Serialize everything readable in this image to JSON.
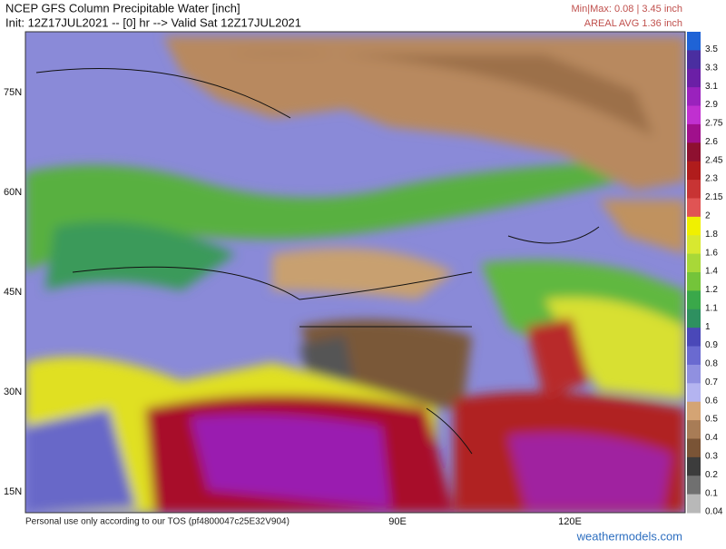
{
  "header": {
    "title": "NCEP GFS Column Precipitable Water [inch]",
    "init": "Init: 12Z17JUL2021 -- [0] hr --> Valid Sat 12Z17JUL2021",
    "minmax": "Min|Max: 0.08 | 3.45 inch",
    "areal_avg": "AREAL AVG 1.36 inch"
  },
  "map": {
    "lat_labels": [
      "75N",
      "60N",
      "45N",
      "30N",
      "15N"
    ],
    "lon_labels": [
      "90E",
      "120E"
    ]
  },
  "colorbar": {
    "levels": [
      {
        "label": "3.5",
        "color": "#1f63d6"
      },
      {
        "label": "3.3",
        "color": "#4a2ea0"
      },
      {
        "label": "3.1",
        "color": "#6b1fa6"
      },
      {
        "label": "2.9",
        "color": "#9a22bd"
      },
      {
        "label": "2.75",
        "color": "#c030d0"
      },
      {
        "label": "2.6",
        "color": "#a0108c"
      },
      {
        "label": "2.45",
        "color": "#8e1030"
      },
      {
        "label": "2.3",
        "color": "#b01c1c"
      },
      {
        "label": "2.15",
        "color": "#c83434"
      },
      {
        "label": "2",
        "color": "#e05454"
      },
      {
        "label": "1.8",
        "color": "#f0f000"
      },
      {
        "label": "1.6",
        "color": "#d8e830"
      },
      {
        "label": "1.4",
        "color": "#a8d838"
      },
      {
        "label": "1.2",
        "color": "#74c43a"
      },
      {
        "label": "1.1",
        "color": "#3aa84a"
      },
      {
        "label": "1",
        "color": "#2e9060"
      },
      {
        "label": "0.9",
        "color": "#4a48b8"
      },
      {
        "label": "0.8",
        "color": "#6a6ad0"
      },
      {
        "label": "0.7",
        "color": "#9090e0"
      },
      {
        "label": "0.6",
        "color": "#b4b4f0"
      },
      {
        "label": "0.5",
        "color": "#d4a474"
      },
      {
        "label": "0.4",
        "color": "#a87c56"
      },
      {
        "label": "0.3",
        "color": "#7a5436"
      },
      {
        "label": "0.2",
        "color": "#3c3c3c"
      },
      {
        "label": "0.1",
        "color": "#707070"
      },
      {
        "label": "0.04",
        "color": "#b8b8b8"
      }
    ]
  },
  "footer": {
    "tos": "Personal use only according to our TOS (pf4800047c25E32V904)",
    "site": "weathermodels.com"
  }
}
